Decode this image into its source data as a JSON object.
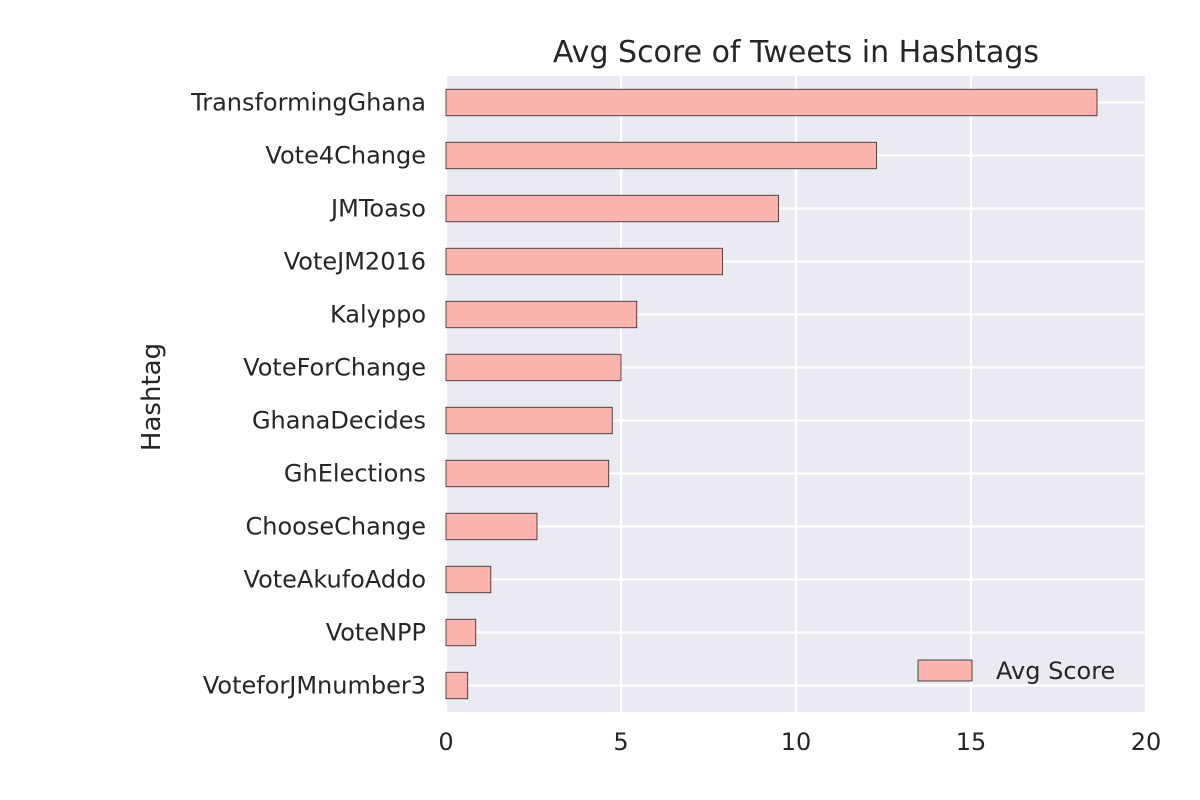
{
  "chart_data": {
    "type": "bar",
    "orientation": "horizontal",
    "title": "Avg Score of Tweets in Hashtags",
    "xlabel": "",
    "ylabel": "Hashtag",
    "xlim": [
      0,
      20
    ],
    "xticks": [
      "0",
      "5",
      "10",
      "15",
      "20"
    ],
    "grid": true,
    "legend_position": "bottom-right",
    "categories": [
      "TransformingGhana",
      "Vote4Change",
      "JMToaso",
      "VoteJM2016",
      "Kalyppo",
      "VoteForChange",
      "GhanaDecides",
      "GhElections",
      "ChooseChange",
      "VoteAkufoAddo",
      "VoteNPP",
      "VoteforJMnumber3"
    ],
    "series": [
      {
        "name": "Avg Score",
        "color": "#fbb4ae",
        "values": [
          18.6,
          12.3,
          9.5,
          7.9,
          5.45,
          5.0,
          4.75,
          4.65,
          2.6,
          1.28,
          0.85,
          0.62
        ]
      }
    ],
    "colors": {
      "plot_background": "#eaeaf2",
      "grid": "#ffffff",
      "bar_fill": "#fbb4ae",
      "bar_edge": "#262626",
      "text": "#262626"
    }
  }
}
